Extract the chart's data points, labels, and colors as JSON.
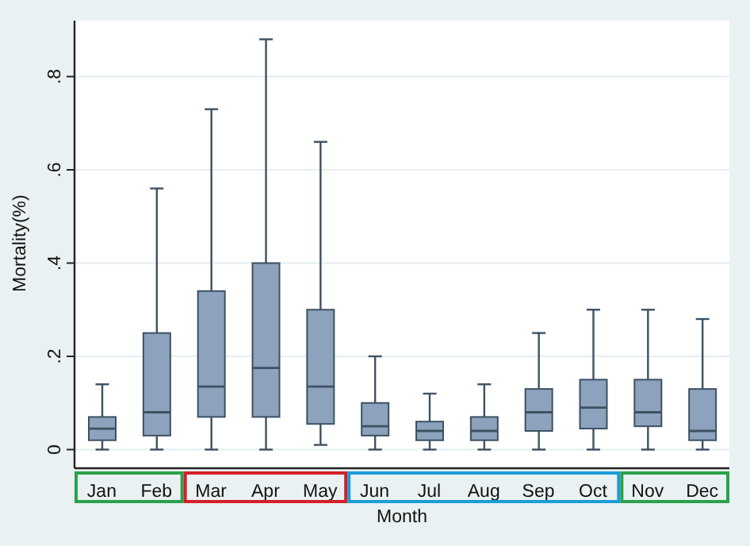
{
  "chart_data": {
    "type": "box",
    "xlabel": "Month",
    "ylabel": "Mortality(%)",
    "categories": [
      "Jan",
      "Feb",
      "Mar",
      "Apr",
      "May",
      "Jun",
      "Jul",
      "Aug",
      "Sep",
      "Oct",
      "Nov",
      "Dec"
    ],
    "color": "#8ca2bd",
    "boxes": [
      {
        "low": 0,
        "q1": 0.02,
        "median": 0.045,
        "q3": 0.07,
        "high": 0.14
      },
      {
        "low": 0,
        "q1": 0.03,
        "median": 0.08,
        "q3": 0.25,
        "high": 0.56
      },
      {
        "low": 0,
        "q1": 0.07,
        "median": 0.135,
        "q3": 0.34,
        "high": 0.73
      },
      {
        "low": 0,
        "q1": 0.07,
        "median": 0.175,
        "q3": 0.4,
        "high": 0.88
      },
      {
        "low": 0.01,
        "q1": 0.055,
        "median": 0.135,
        "q3": 0.3,
        "high": 0.66
      },
      {
        "low": 0,
        "q1": 0.03,
        "median": 0.05,
        "q3": 0.1,
        "high": 0.2
      },
      {
        "low": 0,
        "q1": 0.02,
        "median": 0.04,
        "q3": 0.06,
        "high": 0.12
      },
      {
        "low": 0,
        "q1": 0.02,
        "median": 0.04,
        "q3": 0.07,
        "high": 0.14
      },
      {
        "low": 0,
        "q1": 0.04,
        "median": 0.08,
        "q3": 0.13,
        "high": 0.25
      },
      {
        "low": 0,
        "q1": 0.045,
        "median": 0.09,
        "q3": 0.15,
        "high": 0.3
      },
      {
        "low": 0,
        "q1": 0.05,
        "median": 0.08,
        "q3": 0.15,
        "high": 0.3
      },
      {
        "low": 0,
        "q1": 0.02,
        "median": 0.04,
        "q3": 0.13,
        "high": 0.28
      }
    ],
    "ylim": [
      -0.04,
      0.92
    ],
    "yticks": [
      {
        "value": 0,
        "label": "0"
      },
      {
        "value": 0.2,
        "label": ".2"
      },
      {
        "value": 0.4,
        "label": ".4"
      },
      {
        "value": 0.6,
        "label": ".6"
      },
      {
        "value": 0.8,
        "label": ".8"
      }
    ],
    "grid": "y"
  }
}
